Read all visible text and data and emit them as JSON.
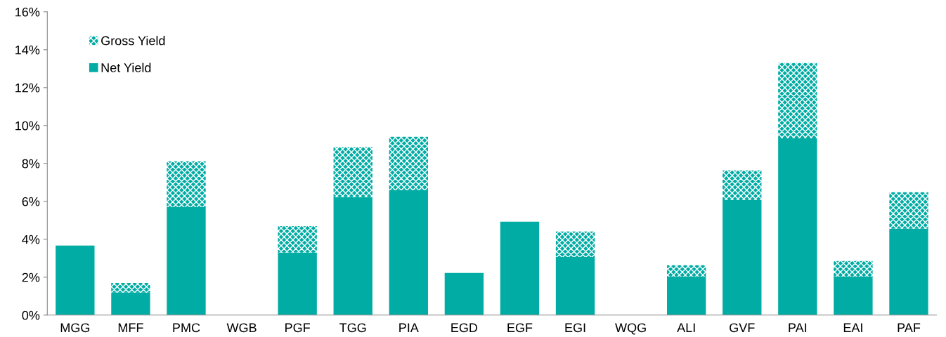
{
  "chart_data": {
    "type": "bar",
    "stacked": true,
    "categories": [
      "MGG",
      "MFF",
      "PMC",
      "WGB",
      "PGF",
      "TGG",
      "PIA",
      "EGD",
      "EGF",
      "EGI",
      "WQG",
      "ALI",
      "GVF",
      "PAI",
      "EAI",
      "PAF"
    ],
    "series": [
      {
        "name": "Net Yield",
        "color": "#00aca4",
        "values": [
          3.67,
          1.19,
          5.7,
          null,
          3.3,
          6.22,
          6.59,
          2.22,
          4.93,
          3.07,
          null,
          2.04,
          6.07,
          9.33,
          2.04,
          4.56
        ]
      },
      {
        "name": "Gross Yield",
        "color": "#00aca4",
        "values": [
          null,
          0.51,
          2.41,
          null,
          1.4,
          2.63,
          2.82,
          null,
          null,
          1.34,
          null,
          0.59,
          1.56,
          3.97,
          0.81,
          1.92
        ]
      }
    ],
    "ylim": [
      0,
      16
    ],
    "yticks": [
      {
        "value": 0,
        "label": "0%"
      },
      {
        "value": 2,
        "label": "2%"
      },
      {
        "value": 4,
        "label": "4%"
      },
      {
        "value": 6,
        "label": "6%"
      },
      {
        "value": 8,
        "label": "8%"
      },
      {
        "value": 10,
        "label": "10%"
      },
      {
        "value": 12,
        "label": "12%"
      },
      {
        "value": 14,
        "label": "14%"
      },
      {
        "value": 16,
        "label": "16%"
      }
    ],
    "grid": false,
    "legend": "top left"
  }
}
